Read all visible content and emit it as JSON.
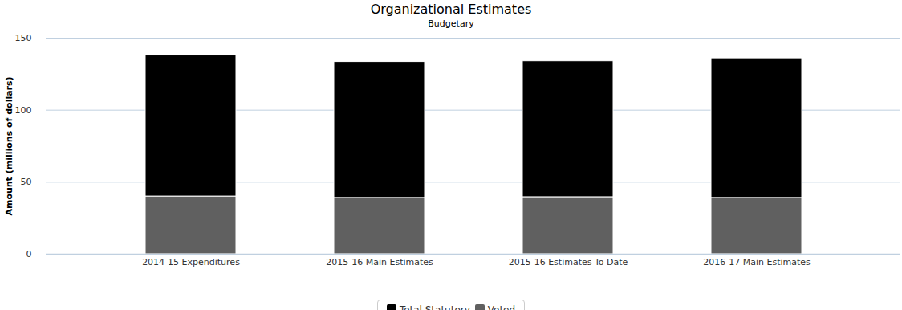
{
  "chart_data": {
    "type": "bar",
    "title": "Organizational Estimates",
    "subtitle": "Budgetary",
    "y_label": "Amount (millions of dollars)",
    "categories": [
      "2014-15 Expenditures",
      "2015-16 Main Estimates",
      "2015-16 Estimates To Date",
      "2016-17 Main Estimates"
    ],
    "series": [
      {
        "name": "Total Statutory",
        "color": "#000000",
        "values": [
          98,
          94.5,
          94.5,
          97
        ]
      },
      {
        "name": "Voted",
        "color": "#606060",
        "values": [
          40,
          39,
          39.5,
          39
        ]
      }
    ],
    "stacked": true,
    "ylim": [
      0,
      150
    ],
    "yticks": [
      0,
      50,
      100,
      150
    ],
    "grid": true,
    "legend": "bottom"
  }
}
